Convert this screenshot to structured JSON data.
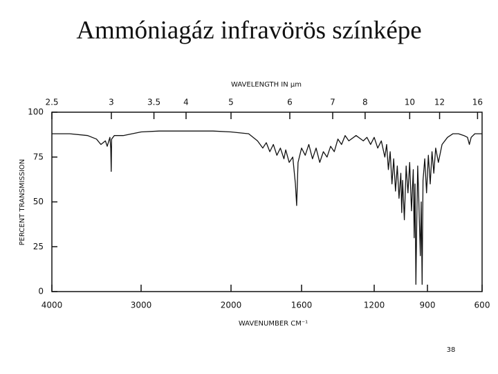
{
  "chart_data": {
    "type": "line",
    "title": "Ammóniagáz infravörös színképe",
    "x2_label": "WAVELENGTH IN µm",
    "x_label": "WAVENUMBER CM⁻¹",
    "y_label": "PERCENT TRANSMISSION",
    "x": [
      4000,
      3800,
      3600,
      3500,
      3450,
      3400,
      3380,
      3350,
      3340,
      3335,
      3330,
      3300,
      3200,
      3100,
      3000,
      2800,
      2500,
      2200,
      2000,
      1900,
      1850,
      1820,
      1800,
      1780,
      1760,
      1740,
      1720,
      1700,
      1690,
      1670,
      1650,
      1635,
      1628,
      1620,
      1600,
      1580,
      1560,
      1540,
      1520,
      1500,
      1480,
      1460,
      1440,
      1420,
      1400,
      1380,
      1360,
      1340,
      1300,
      1260,
      1240,
      1220,
      1200,
      1180,
      1160,
      1140,
      1130,
      1120,
      1110,
      1100,
      1090,
      1080,
      1070,
      1060,
      1050,
      1045,
      1040,
      1030,
      1020,
      1010,
      1000,
      990,
      980,
      975,
      970,
      965,
      960,
      955,
      950,
      940,
      935,
      930,
      925,
      915,
      905,
      895,
      885,
      875,
      865,
      855,
      840,
      820,
      790,
      760,
      730,
      700,
      680,
      670,
      660,
      640,
      600
    ],
    "series": [
      {
        "color": "#111111",
        "values": [
          88,
          88,
          87,
          85,
          82,
          84,
          81,
          86,
          80,
          67,
          85,
          87,
          87,
          88,
          89,
          89.5,
          89.5,
          89.5,
          89,
          88,
          84,
          80,
          83,
          78,
          82,
          76,
          80,
          74,
          79,
          72,
          75,
          60,
          48,
          72,
          80,
          76,
          82,
          74,
          80,
          72,
          78,
          75,
          81,
          78,
          85,
          82,
          87,
          84,
          87,
          84,
          86,
          82,
          86,
          80,
          84,
          75,
          82,
          68,
          78,
          60,
          74,
          56,
          70,
          52,
          66,
          44,
          62,
          40,
          70,
          55,
          72,
          45,
          68,
          30,
          60,
          4,
          40,
          70,
          55,
          20,
          50,
          4,
          62,
          74,
          55,
          76,
          60,
          78,
          66,
          80,
          72,
          82,
          86,
          88,
          88,
          87,
          86,
          82,
          86,
          88,
          88
        ]
      }
    ],
    "xlim": [
      4000,
      600
    ],
    "xticks": [
      4000,
      3000,
      2000,
      1600,
      1200,
      900,
      600
    ],
    "x2ticks": [
      2.5,
      3,
      3.5,
      4,
      5,
      6,
      7,
      8,
      10,
      12,
      16
    ],
    "ylim": [
      0,
      100
    ],
    "yticks": [
      0,
      25,
      50,
      75,
      100
    ]
  },
  "page_number": "38"
}
